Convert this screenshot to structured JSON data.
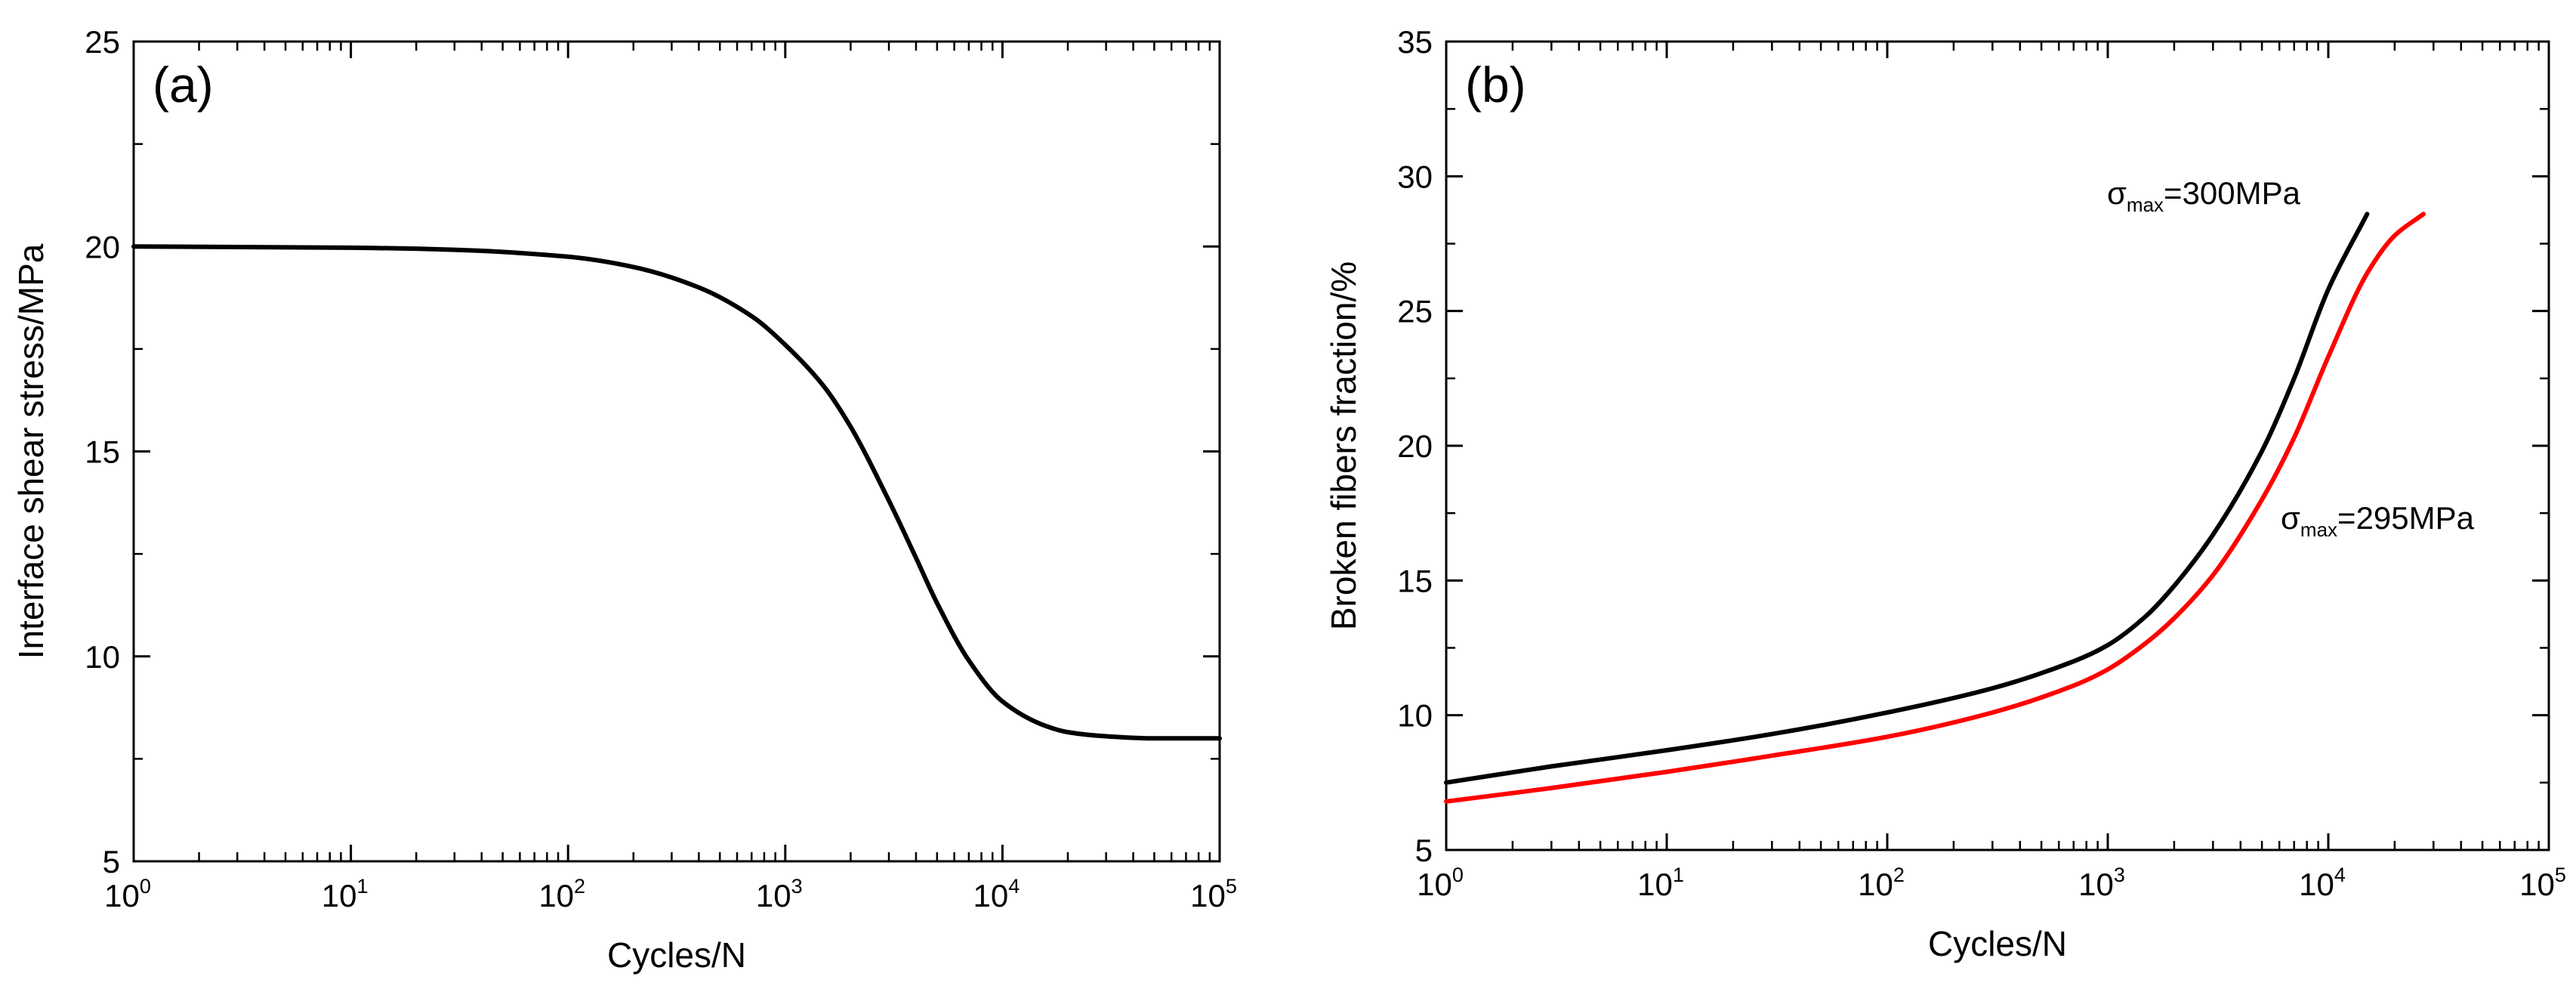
{
  "chart_data": [
    {
      "type": "line",
      "panel_label": "(a)",
      "xlabel": "Cycles/N",
      "ylabel": "Interface shear stress/MPa",
      "xscale": "log",
      "xlim": [
        1,
        100000
      ],
      "ylim": [
        5,
        25
      ],
      "x_ticks": [
        {
          "base": "10",
          "exp": "0"
        },
        {
          "base": "10",
          "exp": "1"
        },
        {
          "base": "10",
          "exp": "2"
        },
        {
          "base": "10",
          "exp": "3"
        },
        {
          "base": "10",
          "exp": "4"
        },
        {
          "base": "10",
          "exp": "5"
        }
      ],
      "y_ticks": [
        "5",
        "10",
        "15",
        "20",
        "25"
      ],
      "series": [
        {
          "name": "Interface shear stress",
          "color": "#000000",
          "x": [
            1,
            10,
            30,
            100,
            200,
            400,
            700,
            1000,
            1500,
            2000,
            3000,
            4000,
            5000,
            7000,
            10000,
            15000,
            20000,
            30000,
            50000,
            100000
          ],
          "y": [
            20.0,
            19.97,
            19.92,
            19.75,
            19.5,
            19.0,
            18.3,
            17.6,
            16.6,
            15.6,
            13.8,
            12.4,
            11.3,
            9.9,
            8.9,
            8.35,
            8.15,
            8.05,
            8.0,
            8.0
          ]
        }
      ]
    },
    {
      "type": "line",
      "panel_label": "(b)",
      "xlabel": "Cycles/N",
      "ylabel": "Broken fibers fraction/%",
      "xscale": "log",
      "xlim": [
        1,
        100000
      ],
      "ylim": [
        5,
        35
      ],
      "x_ticks": [
        {
          "base": "10",
          "exp": "0"
        },
        {
          "base": "10",
          "exp": "1"
        },
        {
          "base": "10",
          "exp": "2"
        },
        {
          "base": "10",
          "exp": "3"
        },
        {
          "base": "10",
          "exp": "4"
        },
        {
          "base": "10",
          "exp": "5"
        }
      ],
      "y_ticks": [
        "5",
        "10",
        "15",
        "20",
        "25",
        "30",
        "35"
      ],
      "series": [
        {
          "name": "σmax=300MPa",
          "color": "#000000",
          "x": [
            1,
            3,
            10,
            30,
            100,
            300,
            700,
            1000,
            1500,
            2000,
            3000,
            5000,
            7000,
            10000,
            15000
          ],
          "y": [
            7.5,
            8.1,
            8.7,
            9.3,
            10.1,
            11.0,
            12.0,
            12.6,
            13.7,
            14.8,
            16.7,
            19.8,
            22.5,
            25.8,
            28.6
          ]
        },
        {
          "name": "σmax=295MPa",
          "color": "#ff0000",
          "x": [
            1,
            3,
            10,
            30,
            100,
            300,
            700,
            1000,
            1500,
            2000,
            3000,
            5000,
            7000,
            10000,
            15000,
            20000,
            27000
          ],
          "y": [
            6.8,
            7.3,
            7.9,
            8.5,
            9.2,
            10.1,
            11.1,
            11.7,
            12.7,
            13.6,
            15.2,
            18.0,
            20.3,
            23.3,
            26.4,
            27.8,
            28.6
          ]
        }
      ],
      "annotations": [
        {
          "main": "σ",
          "sub": "max",
          "rest": "=300MPa"
        },
        {
          "main": "σ",
          "sub": "max",
          "rest": "=295MPa"
        }
      ]
    }
  ]
}
